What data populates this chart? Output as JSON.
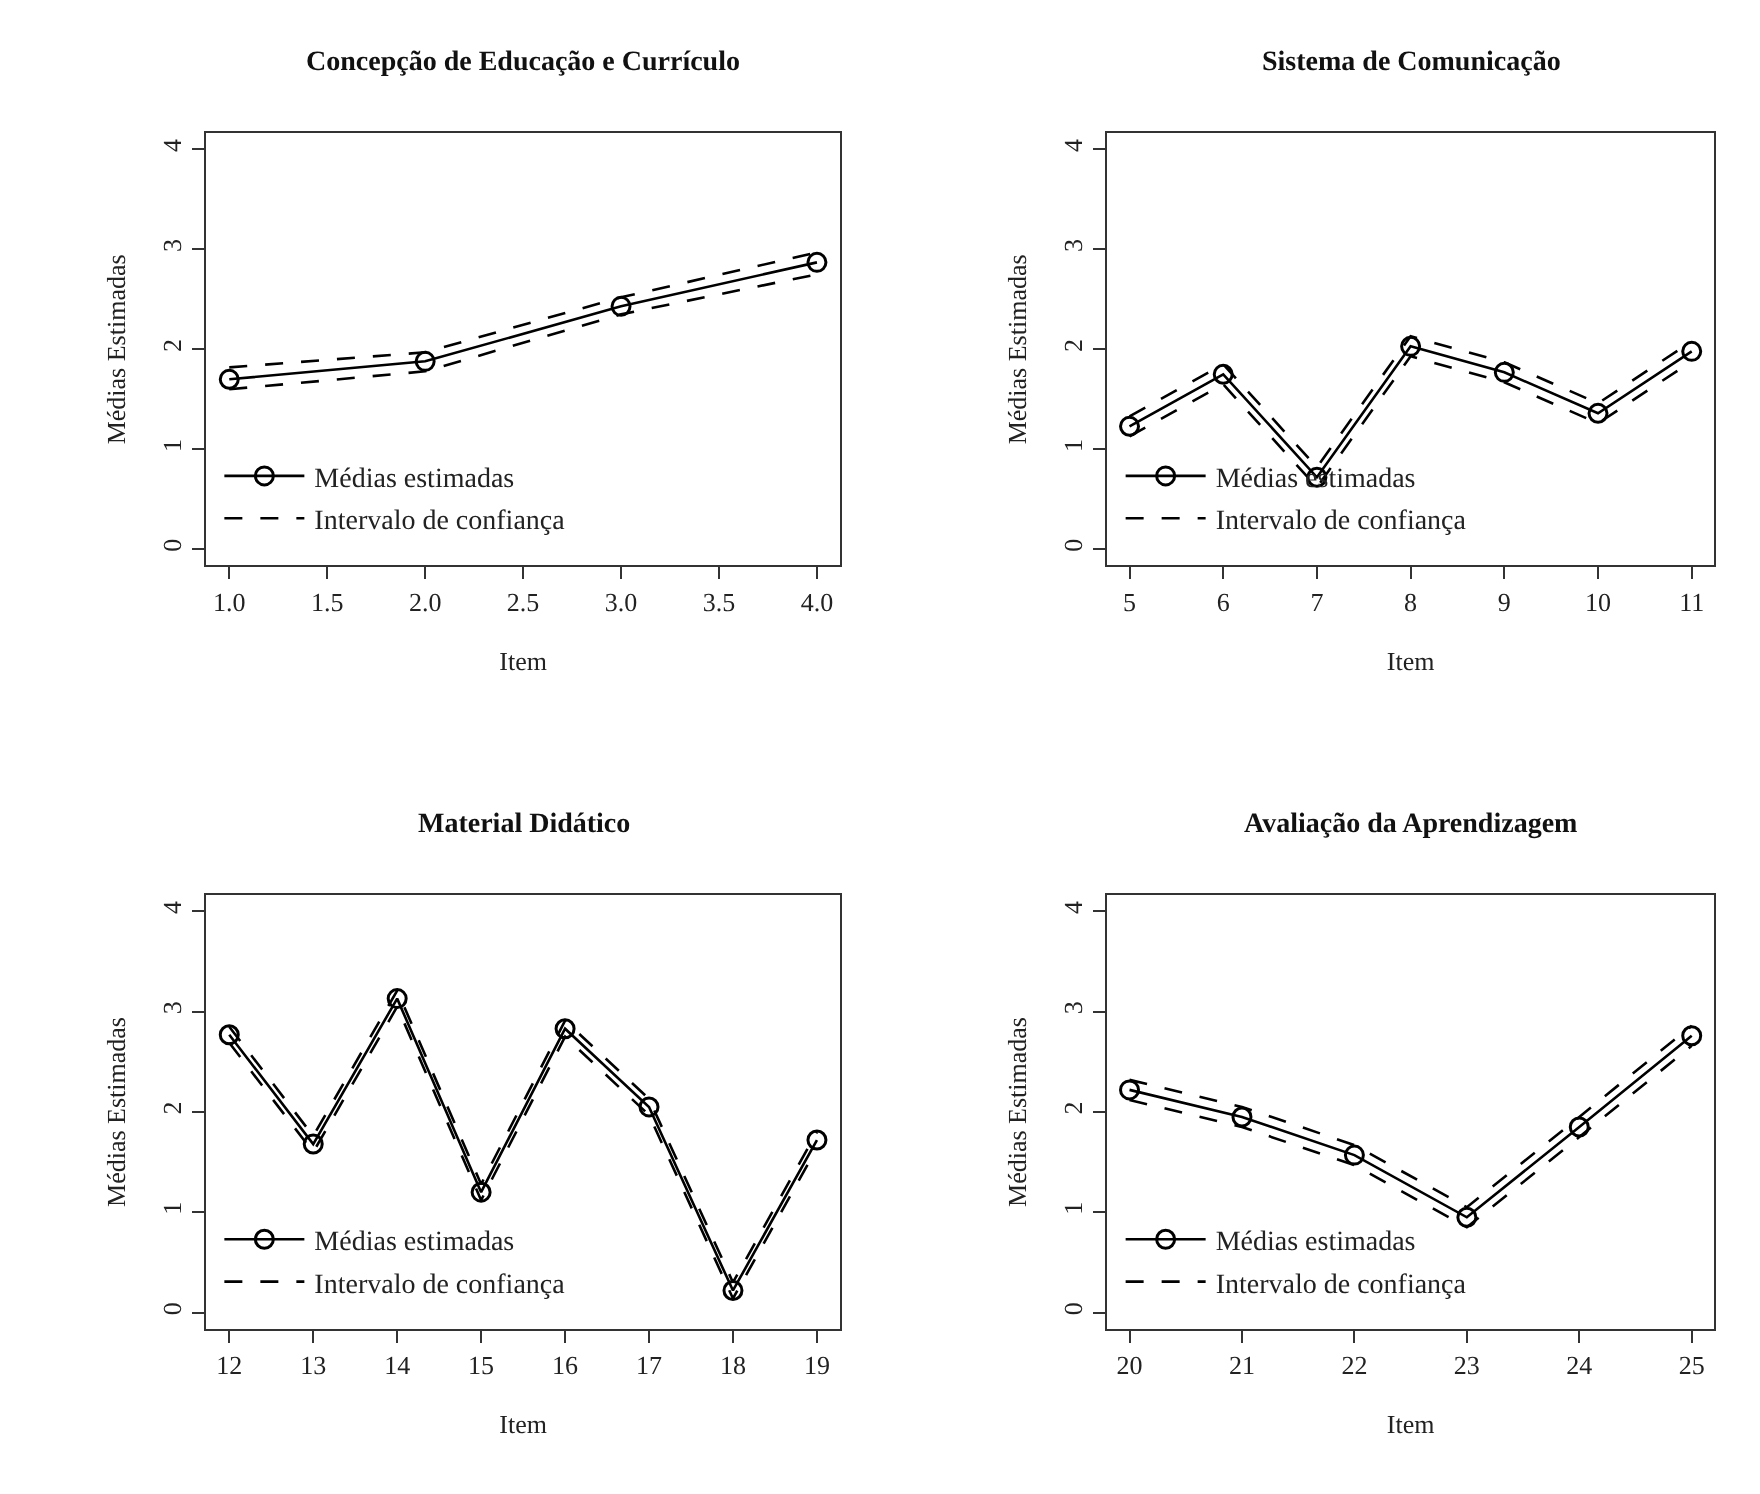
{
  "chart_data": [
    {
      "type": "line",
      "title": "Concepção de Educação e Currículo",
      "xlabel": "Item",
      "ylabel": "Médias Estimadas",
      "x": [
        1,
        2,
        3,
        4
      ],
      "xlim": [
        0.88,
        4.12
      ],
      "xticks": [
        {
          "value": 1,
          "label": "1.0"
        },
        {
          "value": 1.5,
          "label": "1.5"
        },
        {
          "value": 2,
          "label": "2.0"
        },
        {
          "value": 2.5,
          "label": "2.5"
        },
        {
          "value": 3,
          "label": "3.0"
        },
        {
          "value": 3.5,
          "label": "3.5"
        },
        {
          "value": 4,
          "label": "4.0"
        }
      ],
      "ylim": [
        -0.16,
        4.16
      ],
      "yticks": [
        0,
        1,
        2,
        3,
        4
      ],
      "legend": "bottom left",
      "series": [
        {
          "name": "Médias estimadas",
          "color": "#000000",
          "marker": "circle",
          "line_style": "solid",
          "values": [
            1.7,
            1.88,
            2.43,
            2.87
          ]
        },
        {
          "name": "Intervalo de confiança",
          "color": "#000000",
          "marker": "none",
          "line_style": "dashed",
          "values": [
            1.6,
            1.78,
            2.35,
            2.75
          ]
        },
        {
          "color": "#000000",
          "marker": "none",
          "line_style": "dashed",
          "values": [
            1.82,
            1.97,
            2.52,
            2.97
          ]
        }
      ]
    },
    {
      "type": "line",
      "title": "Sistema de Comunicação",
      "xlabel": "Item",
      "ylabel": "Médias Estimadas",
      "x": [
        5,
        6,
        7,
        8,
        9,
        10,
        11
      ],
      "xlim": [
        4.76,
        11.24
      ],
      "xticks": [
        5,
        6,
        7,
        8,
        9,
        10,
        11
      ],
      "ylim": [
        -0.16,
        4.16
      ],
      "yticks": [
        0,
        1,
        2,
        3,
        4
      ],
      "legend": "bottom left",
      "series": [
        {
          "name": "Médias estimadas",
          "color": "#000000",
          "marker": "circle",
          "line_style": "solid",
          "values": [
            1.23,
            1.75,
            0.72,
            2.03,
            1.77,
            1.36,
            1.98
          ]
        },
        {
          "name": "Intervalo de confiança",
          "color": "#000000",
          "marker": "none",
          "line_style": "dashed",
          "values": [
            1.13,
            1.65,
            0.62,
            1.93,
            1.67,
            1.26,
            1.88
          ]
        },
        {
          "color": "#000000",
          "marker": "none",
          "line_style": "dashed",
          "values": [
            1.33,
            1.85,
            0.82,
            2.13,
            1.87,
            1.46,
            2.08
          ]
        }
      ]
    },
    {
      "type": "line",
      "title": "Material Didático",
      "xlabel": "Item",
      "ylabel": "Médias Estimadas",
      "x": [
        12,
        13,
        14,
        15,
        16,
        17,
        18,
        19
      ],
      "xlim": [
        11.72,
        19.28
      ],
      "xticks": [
        12,
        13,
        14,
        15,
        16,
        17,
        18,
        19
      ],
      "ylim": [
        -0.16,
        4.16
      ],
      "yticks": [
        0,
        1,
        2,
        3,
        4
      ],
      "legend": "bottom left",
      "series": [
        {
          "name": "Médias estimadas",
          "color": "#000000",
          "marker": "circle",
          "line_style": "solid",
          "values": [
            2.77,
            1.68,
            3.13,
            1.2,
            2.83,
            2.05,
            0.22,
            1.72
          ]
        },
        {
          "name": "Intervalo de confiança",
          "color": "#000000",
          "marker": "none",
          "line_style": "dashed",
          "values": [
            2.69,
            1.6,
            3.05,
            1.12,
            2.75,
            1.97,
            0.14,
            1.64
          ]
        },
        {
          "color": "#000000",
          "marker": "none",
          "line_style": "dashed",
          "values": [
            2.85,
            1.76,
            3.21,
            1.28,
            2.91,
            2.13,
            0.3,
            1.8
          ]
        }
      ]
    },
    {
      "type": "line",
      "title": "Avaliação da Aprendizagem",
      "xlabel": "Item",
      "ylabel": "Médias Estimadas",
      "x": [
        20,
        21,
        22,
        23,
        24,
        25
      ],
      "xlim": [
        19.8,
        25.2
      ],
      "xticks": [
        20,
        21,
        22,
        23,
        24,
        25
      ],
      "ylim": [
        -0.16,
        4.16
      ],
      "yticks": [
        0,
        1,
        2,
        3,
        4
      ],
      "legend": "bottom left",
      "series": [
        {
          "name": "Médias estimadas",
          "color": "#000000",
          "marker": "circle",
          "line_style": "solid",
          "values": [
            2.22,
            1.95,
            1.57,
            0.95,
            1.85,
            2.76
          ]
        },
        {
          "name": "Intervalo de confiança",
          "color": "#000000",
          "marker": "none",
          "line_style": "dashed",
          "values": [
            2.12,
            1.85,
            1.47,
            0.85,
            1.75,
            2.66
          ]
        },
        {
          "color": "#000000",
          "marker": "none",
          "line_style": "dashed",
          "values": [
            2.32,
            2.05,
            1.67,
            1.05,
            1.95,
            2.86
          ]
        }
      ]
    }
  ]
}
